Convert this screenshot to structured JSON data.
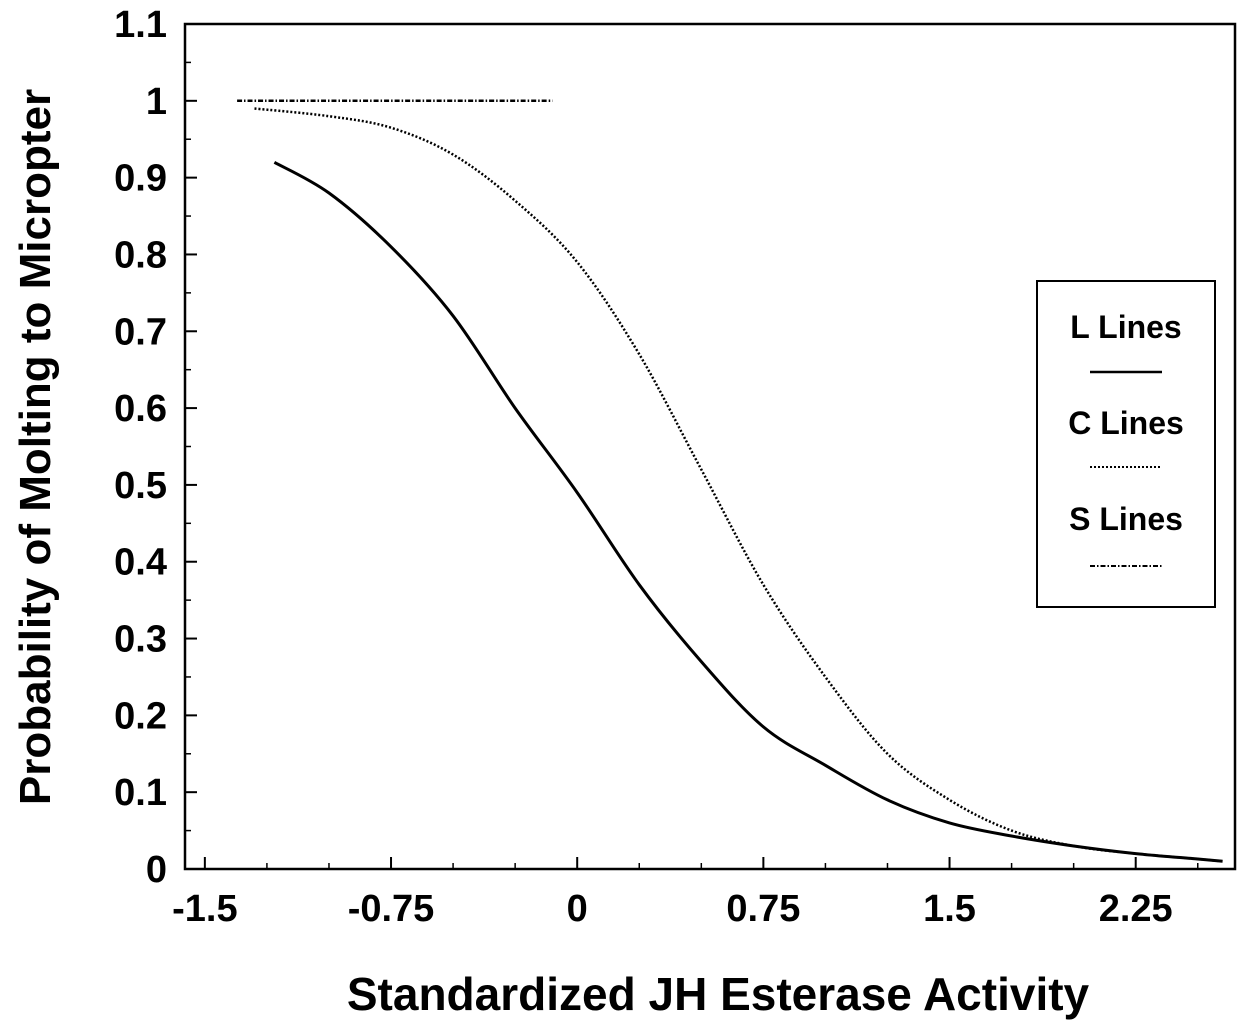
{
  "chart_data": {
    "type": "line",
    "title": "",
    "xlabel": "Standardized JH Esterase Activity",
    "ylabel": "Probability of Molting to Micropter",
    "xlim": [
      -1.58,
      2.65
    ],
    "ylim": [
      0,
      1.1
    ],
    "x_ticks": [
      -1.5,
      -0.75,
      0,
      0.75,
      1.5,
      2.25
    ],
    "x_tick_labels": [
      "-1.5",
      "-0.75",
      "0",
      "0.75",
      "1.5",
      "2.25"
    ],
    "y_ticks": [
      0,
      0.1,
      0.2,
      0.3,
      0.4,
      0.5,
      0.6,
      0.7,
      0.8,
      0.9,
      1,
      1.1
    ],
    "y_tick_labels": [
      "0",
      "0.1",
      "0.2",
      "0.3",
      "0.4",
      "0.5",
      "0.6",
      "0.7",
      "0.8",
      "0.9",
      "1",
      "1.1"
    ],
    "legend_position": "right",
    "series": [
      {
        "name": "L Lines",
        "style": "solid",
        "x": [
          -1.22,
          -1.0,
          -0.75,
          -0.5,
          -0.25,
          0.0,
          0.25,
          0.5,
          0.75,
          1.0,
          1.25,
          1.5,
          1.75,
          2.0,
          2.25,
          2.5,
          2.6
        ],
        "y": [
          0.92,
          0.88,
          0.81,
          0.72,
          0.6,
          0.49,
          0.37,
          0.27,
          0.185,
          0.135,
          0.09,
          0.06,
          0.043,
          0.03,
          0.02,
          0.013,
          0.01
        ]
      },
      {
        "name": "C Lines",
        "style": "dotted",
        "x": [
          -1.3,
          -1.0,
          -0.75,
          -0.5,
          -0.25,
          0.0,
          0.25,
          0.5,
          0.75,
          1.0,
          1.25,
          1.5,
          1.75,
          2.0,
          2.25,
          2.5,
          2.6
        ],
        "y": [
          0.99,
          0.98,
          0.965,
          0.93,
          0.87,
          0.79,
          0.67,
          0.52,
          0.37,
          0.25,
          0.15,
          0.09,
          0.05,
          0.03,
          0.02,
          0.013,
          0.01
        ]
      },
      {
        "name": "S Lines",
        "style": "dash-dot",
        "x": [
          -1.37,
          -0.1
        ],
        "y": [
          1.0,
          1.0
        ]
      }
    ],
    "colors": {
      "line": "#000000",
      "background": "#ffffff"
    }
  }
}
